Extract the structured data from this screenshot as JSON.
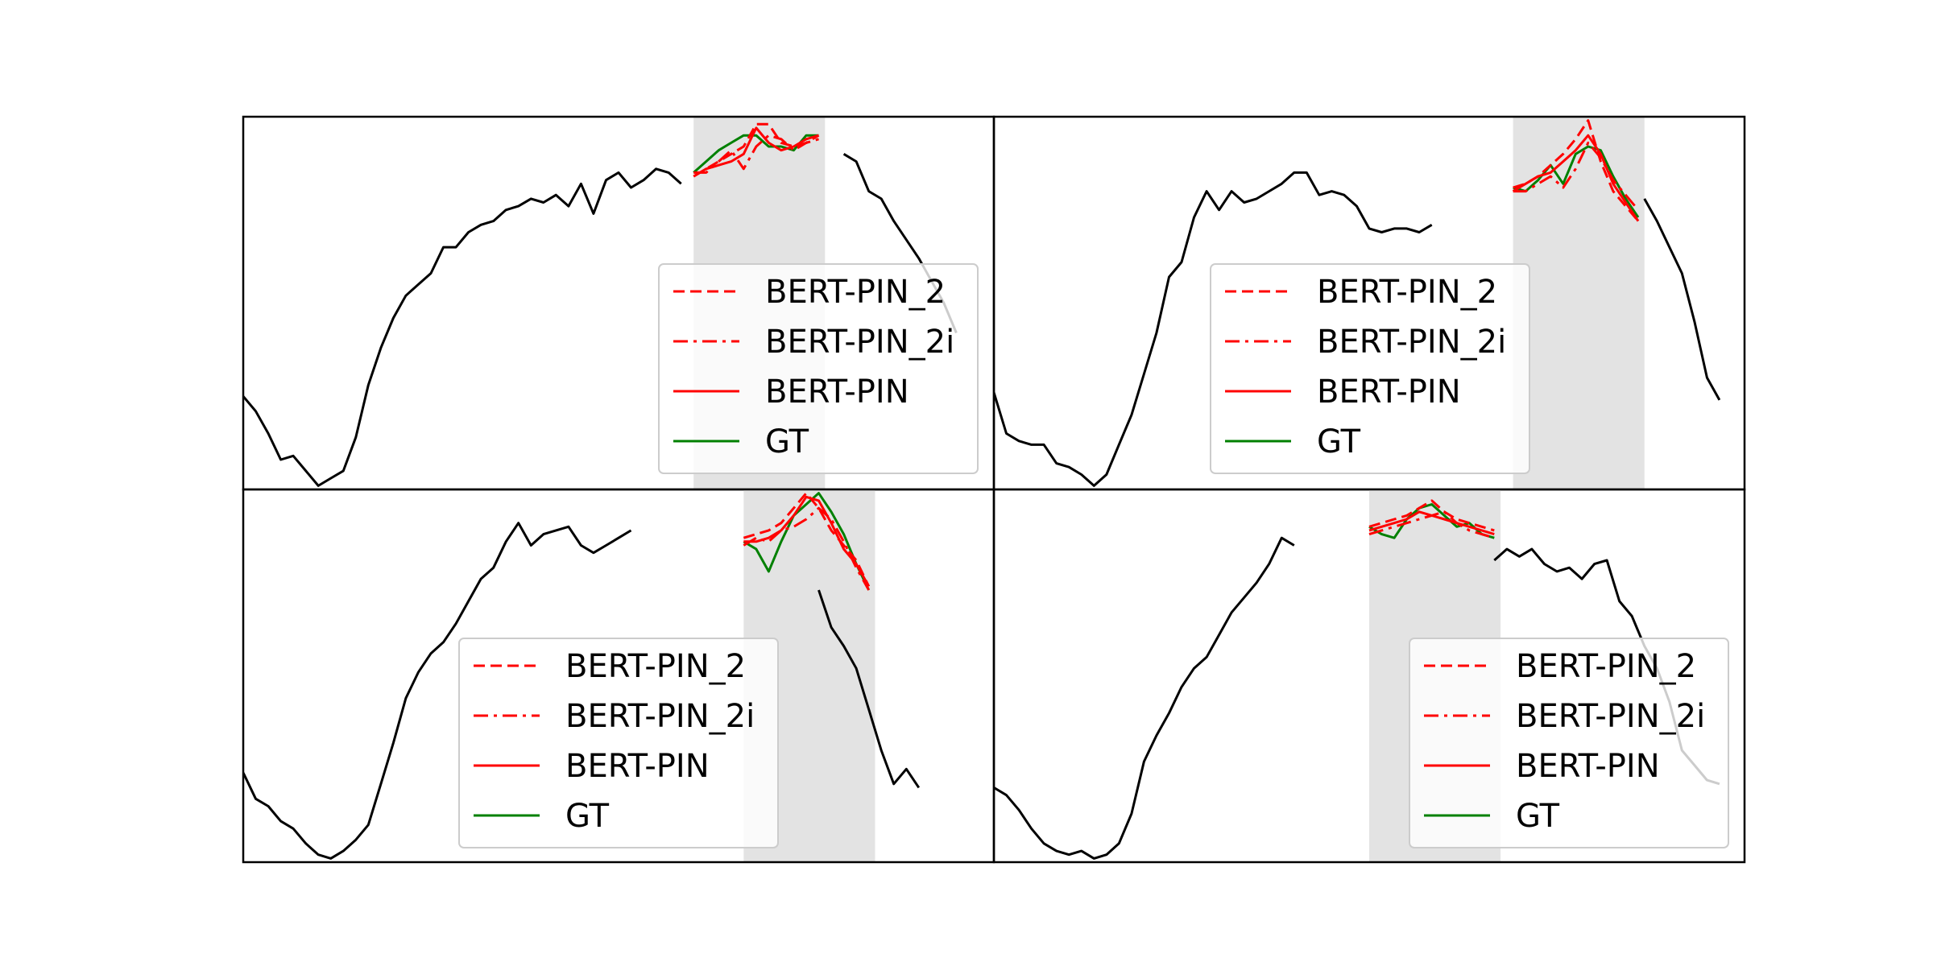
{
  "chart_data": [
    {
      "type": "line",
      "panel": "top-left",
      "xlim": [
        0,
        120
      ],
      "ylim": [
        0,
        1
      ],
      "masked_region": [
        72,
        93
      ],
      "legend": {
        "placement": "lower-right",
        "entries": [
          "BERT-PIN_2",
          "BERT-PIN_2i",
          "BERT-PIN",
          "GT"
        ]
      },
      "series": [
        {
          "name": "context",
          "color": "#000000",
          "style": "solid",
          "x": [
            0,
            2,
            4,
            6,
            8,
            10,
            12,
            14,
            16,
            18,
            20,
            22,
            24,
            26,
            28,
            30,
            32,
            34,
            36,
            38,
            40,
            42,
            44,
            46,
            48,
            50,
            52,
            54,
            56,
            58,
            60,
            62,
            64,
            66,
            68,
            70,
            72,
            74,
            76,
            78,
            80,
            82,
            84,
            86,
            88,
            90,
            92,
            94,
            96,
            98,
            100,
            102,
            104,
            106,
            108,
            110,
            112,
            114
          ],
          "y": [
            0.25,
            0.21,
            0.15,
            0.08,
            0.09,
            0.05,
            0.01,
            0.03,
            0.05,
            0.14,
            0.28,
            0.38,
            0.46,
            0.52,
            0.55,
            0.58,
            0.65,
            0.65,
            0.69,
            0.71,
            0.72,
            0.75,
            0.76,
            0.78,
            0.77,
            0.79,
            0.76,
            0.82,
            0.74,
            0.83,
            0.85,
            0.81,
            0.83,
            0.86,
            0.85,
            0.82,
            null,
            null,
            null,
            null,
            null,
            null,
            null,
            null,
            null,
            null,
            null,
            null,
            0.9,
            0.88,
            0.8,
            0.78,
            0.72,
            0.67,
            0.62,
            0.56,
            0.5,
            0.42
          ]
        },
        {
          "name": "GT",
          "color": "#008000",
          "style": "solid",
          "x": [
            72,
            74,
            76,
            78,
            80,
            82,
            84,
            86,
            88,
            90,
            92
          ],
          "y": [
            0.85,
            0.88,
            0.91,
            0.93,
            0.95,
            0.95,
            0.92,
            0.92,
            0.91,
            0.95,
            0.95
          ]
        },
        {
          "name": "BERT-PIN",
          "color": "#ff0000",
          "style": "solid",
          "x": [
            72,
            74,
            76,
            78,
            80,
            82,
            84,
            86,
            88,
            90,
            92
          ],
          "y": [
            0.84,
            0.86,
            0.87,
            0.88,
            0.9,
            0.97,
            0.93,
            0.91,
            0.92,
            0.94,
            0.95
          ]
        },
        {
          "name": "BERT-PIN_2",
          "color": "#ff0000",
          "style": "dashed",
          "x": [
            72,
            74,
            76,
            78,
            80,
            82,
            84,
            86,
            88,
            90,
            92
          ],
          "y": [
            0.84,
            0.86,
            0.88,
            0.9,
            0.92,
            0.98,
            0.98,
            0.93,
            0.92,
            0.93,
            0.95
          ]
        },
        {
          "name": "BERT-PIN_2i",
          "color": "#ff0000",
          "style": "dashdot",
          "x": [
            72,
            74,
            76,
            78,
            80,
            82,
            84,
            86,
            88,
            90,
            92
          ],
          "y": [
            0.85,
            0.85,
            0.88,
            0.91,
            0.86,
            0.92,
            0.95,
            0.94,
            0.91,
            0.93,
            0.94
          ]
        }
      ]
    },
    {
      "type": "line",
      "panel": "top-right",
      "xlim": [
        0,
        120
      ],
      "ylim": [
        0,
        1
      ],
      "masked_region": [
        83,
        104
      ],
      "legend": {
        "placement": "lower-left",
        "entries": [
          "BERT-PIN_2",
          "BERT-PIN_2i",
          "BERT-PIN",
          "GT"
        ]
      },
      "series": [
        {
          "name": "context",
          "color": "#000000",
          "style": "solid",
          "x": [
            0,
            2,
            4,
            6,
            8,
            10,
            12,
            14,
            16,
            18,
            20,
            22,
            24,
            26,
            28,
            30,
            32,
            34,
            36,
            38,
            40,
            42,
            44,
            46,
            48,
            50,
            52,
            54,
            56,
            58,
            60,
            62,
            64,
            66,
            68,
            70,
            72,
            74,
            76,
            78,
            80,
            82,
            84,
            86,
            88,
            90,
            92,
            94,
            96,
            98,
            100,
            102,
            104,
            106,
            108,
            110,
            112,
            114,
            116
          ],
          "y": [
            0.26,
            0.15,
            0.13,
            0.12,
            0.12,
            0.07,
            0.06,
            0.04,
            0.01,
            0.04,
            0.12,
            0.2,
            0.31,
            0.42,
            0.57,
            0.61,
            0.73,
            0.8,
            0.75,
            0.8,
            0.77,
            0.78,
            0.8,
            0.82,
            0.85,
            0.85,
            0.79,
            0.8,
            0.79,
            0.76,
            0.7,
            0.69,
            0.7,
            0.7,
            0.69,
            0.71,
            null,
            null,
            null,
            null,
            null,
            null,
            null,
            null,
            null,
            null,
            null,
            null,
            null,
            null,
            null,
            null,
            0.78,
            0.72,
            0.65,
            0.58,
            0.45,
            0.3,
            0.24
          ]
        },
        {
          "name": "GT",
          "color": "#008000",
          "style": "solid",
          "x": [
            83,
            85,
            87,
            89,
            91,
            93,
            95,
            97,
            99,
            101,
            103
          ],
          "y": [
            0.81,
            0.8,
            0.83,
            0.87,
            0.82,
            0.9,
            0.92,
            0.91,
            0.84,
            0.78,
            0.73
          ]
        },
        {
          "name": "BERT-PIN",
          "color": "#ff0000",
          "style": "solid",
          "x": [
            83,
            85,
            87,
            89,
            91,
            93,
            95,
            97,
            99,
            101,
            103
          ],
          "y": [
            0.8,
            0.82,
            0.84,
            0.85,
            0.88,
            0.91,
            0.95,
            0.9,
            0.82,
            0.77,
            0.72
          ]
        },
        {
          "name": "BERT-PIN_2",
          "color": "#ff0000",
          "style": "dashed",
          "x": [
            83,
            85,
            87,
            89,
            91,
            93,
            95,
            97,
            99,
            101,
            103
          ],
          "y": [
            0.81,
            0.82,
            0.84,
            0.87,
            0.9,
            0.94,
            0.99,
            0.88,
            0.8,
            0.76,
            0.72
          ]
        },
        {
          "name": "BERT-PIN_2i",
          "color": "#ff0000",
          "style": "dashdot",
          "x": [
            83,
            85,
            87,
            89,
            91,
            93,
            95,
            97,
            99,
            101,
            103
          ],
          "y": [
            0.8,
            0.8,
            0.82,
            0.84,
            0.81,
            0.86,
            0.93,
            0.89,
            0.83,
            0.79,
            0.75
          ]
        }
      ]
    },
    {
      "type": "line",
      "panel": "bottom-left",
      "xlim": [
        0,
        120
      ],
      "ylim": [
        0,
        1
      ],
      "masked_region": [
        80,
        101
      ],
      "legend": {
        "placement": "lower-center",
        "entries": [
          "BERT-PIN_2",
          "BERT-PIN_2i",
          "BERT-PIN",
          "GT"
        ]
      },
      "series": [
        {
          "name": "context",
          "color": "#000000",
          "style": "solid",
          "x": [
            0,
            2,
            4,
            6,
            8,
            10,
            12,
            14,
            16,
            18,
            20,
            22,
            24,
            26,
            28,
            30,
            32,
            34,
            36,
            38,
            40,
            42,
            44,
            46,
            48,
            50,
            52,
            54,
            56,
            58,
            60,
            62,
            64,
            66,
            68,
            70,
            72,
            74,
            76,
            78,
            80,
            82,
            84,
            86,
            88,
            90,
            92,
            94,
            96,
            98,
            100,
            102,
            104,
            106,
            108,
            110,
            112,
            114,
            116
          ],
          "y": [
            0.24,
            0.17,
            0.15,
            0.11,
            0.09,
            0.05,
            0.02,
            0.01,
            0.03,
            0.06,
            0.1,
            0.21,
            0.32,
            0.44,
            0.51,
            0.56,
            0.59,
            0.64,
            0.7,
            0.76,
            0.79,
            0.86,
            0.91,
            0.85,
            0.88,
            0.89,
            0.9,
            0.85,
            0.83,
            0.85,
            0.87,
            0.89,
            null,
            null,
            null,
            null,
            null,
            null,
            null,
            null,
            null,
            null,
            null,
            null,
            null,
            null,
            0.73,
            0.63,
            0.58,
            0.52,
            0.41,
            0.3,
            0.21,
            0.25,
            0.2,
            null,
            null,
            null,
            null
          ]
        },
        {
          "name": "GT",
          "color": "#008000",
          "style": "solid",
          "x": [
            80,
            82,
            84,
            86,
            88,
            90,
            92,
            94,
            96,
            98,
            100
          ],
          "y": [
            0.86,
            0.84,
            0.78,
            0.86,
            0.93,
            0.96,
            0.99,
            0.94,
            0.88,
            0.8,
            0.73
          ]
        },
        {
          "name": "BERT-PIN",
          "color": "#ff0000",
          "style": "solid",
          "x": [
            80,
            82,
            84,
            86,
            88,
            90,
            92,
            94,
            96,
            98,
            100
          ],
          "y": [
            0.86,
            0.86,
            0.87,
            0.89,
            0.93,
            0.98,
            0.97,
            0.91,
            0.84,
            0.8,
            0.74
          ]
        },
        {
          "name": "BERT-PIN_2",
          "color": "#ff0000",
          "style": "dashed",
          "x": [
            80,
            82,
            84,
            86,
            88,
            90,
            92,
            94,
            96,
            98,
            100
          ],
          "y": [
            0.87,
            0.88,
            0.89,
            0.91,
            0.95,
            0.99,
            0.95,
            0.89,
            0.85,
            0.81,
            0.74
          ]
        },
        {
          "name": "BERT-PIN_2i",
          "color": "#ff0000",
          "style": "dashdot",
          "x": [
            80,
            82,
            84,
            86,
            88,
            90,
            92,
            94,
            96,
            98,
            100
          ],
          "y": [
            0.85,
            0.87,
            0.86,
            0.89,
            0.9,
            0.92,
            0.95,
            0.92,
            0.86,
            0.79,
            0.73
          ]
        }
      ]
    },
    {
      "type": "line",
      "panel": "bottom-right",
      "xlim": [
        0,
        120
      ],
      "ylim": [
        0,
        1
      ],
      "masked_region": [
        60,
        81
      ],
      "legend": {
        "placement": "lower-right",
        "entries": [
          "BERT-PIN_2",
          "BERT-PIN_2i",
          "BERT-PIN",
          "GT"
        ]
      },
      "series": [
        {
          "name": "context",
          "color": "#000000",
          "style": "solid",
          "x": [
            0,
            2,
            4,
            6,
            8,
            10,
            12,
            14,
            16,
            18,
            20,
            22,
            24,
            26,
            28,
            30,
            32,
            34,
            36,
            38,
            40,
            42,
            44,
            46,
            48,
            50,
            52,
            54,
            56,
            58,
            60,
            62,
            64,
            66,
            68,
            70,
            72,
            74,
            76,
            78,
            80,
            82,
            84,
            86,
            88,
            90,
            92,
            94,
            96,
            98,
            100,
            102,
            104,
            106,
            108,
            110,
            112,
            114,
            116
          ],
          "y": [
            0.2,
            0.18,
            0.14,
            0.09,
            0.05,
            0.03,
            0.02,
            0.03,
            0.01,
            0.02,
            0.05,
            0.13,
            0.27,
            0.34,
            0.4,
            0.47,
            0.52,
            0.55,
            0.61,
            0.67,
            0.71,
            0.75,
            0.8,
            0.87,
            0.85,
            null,
            null,
            null,
            null,
            null,
            null,
            null,
            null,
            null,
            null,
            null,
            null,
            null,
            null,
            null,
            0.81,
            0.84,
            0.82,
            0.84,
            0.8,
            0.78,
            0.79,
            0.76,
            0.8,
            0.81,
            0.7,
            0.66,
            0.58,
            0.52,
            0.43,
            0.3,
            0.26,
            0.22,
            0.21
          ]
        },
        {
          "name": "GT",
          "color": "#008000",
          "style": "solid",
          "x": [
            60,
            62,
            64,
            66,
            68,
            70,
            72,
            74,
            76,
            78,
            80
          ],
          "y": [
            0.9,
            0.88,
            0.87,
            0.92,
            0.95,
            0.96,
            0.93,
            0.9,
            0.91,
            0.88,
            0.87
          ]
        },
        {
          "name": "BERT-PIN",
          "color": "#ff0000",
          "style": "solid",
          "x": [
            60,
            62,
            64,
            66,
            68,
            70,
            72,
            74,
            76,
            78,
            80
          ],
          "y": [
            0.89,
            0.9,
            0.91,
            0.92,
            0.94,
            0.93,
            0.92,
            0.91,
            0.9,
            0.89,
            0.88
          ]
        },
        {
          "name": "BERT-PIN_2",
          "color": "#ff0000",
          "style": "dashed",
          "x": [
            60,
            62,
            64,
            66,
            68,
            70,
            72,
            74,
            76,
            78,
            80
          ],
          "y": [
            0.9,
            0.91,
            0.92,
            0.93,
            0.95,
            0.97,
            0.94,
            0.92,
            0.91,
            0.9,
            0.89
          ]
        },
        {
          "name": "BERT-PIN_2i",
          "color": "#ff0000",
          "style": "dashdot",
          "x": [
            60,
            62,
            64,
            66,
            68,
            70,
            72,
            74,
            76,
            78,
            80
          ],
          "y": [
            0.88,
            0.89,
            0.9,
            0.91,
            0.92,
            0.93,
            0.94,
            0.91,
            0.89,
            0.88,
            0.87
          ]
        }
      ]
    }
  ]
}
